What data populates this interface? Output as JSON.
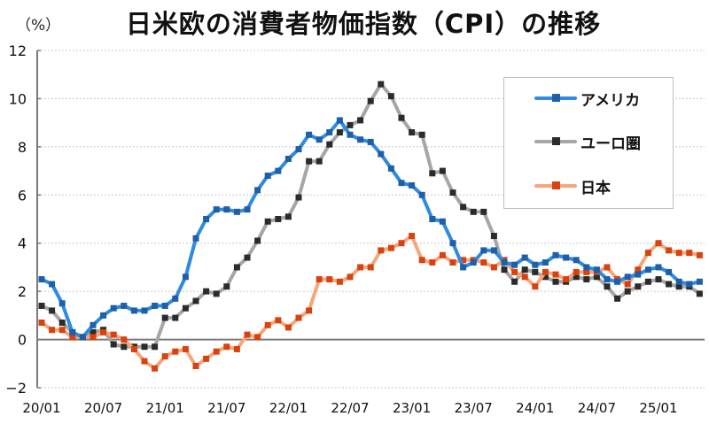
{
  "header": {
    "title": "日米欧の消費者物価指数（CPI）の推移",
    "unit_label": "（%）"
  },
  "legend": [
    {
      "name": "アメリカ",
      "line_color": "#2e8be0",
      "marker_color": "#1f5fa8"
    },
    {
      "name": "ユーロ圏",
      "line_color": "#a6a6a6",
      "marker_color": "#2b2b2b"
    },
    {
      "name": "日本",
      "line_color": "#f4a77a",
      "marker_color": "#d9420f"
    }
  ],
  "chart_data": {
    "type": "line",
    "title": "日米欧の消費者物価指数（CPI）の推移",
    "xlabel": "",
    "ylabel": "（%）",
    "ylim": [
      -2,
      12
    ],
    "yticks": [
      -2,
      0,
      2,
      4,
      6,
      8,
      10,
      12
    ],
    "grid": true,
    "legend_position": "upper right",
    "x_tick_labels": [
      "20/01",
      "20/07",
      "21/01",
      "21/07",
      "22/01",
      "22/07",
      "23/01",
      "23/07",
      "24/01",
      "24/07",
      "25/01"
    ],
    "x": [
      "20/01",
      "20/02",
      "20/03",
      "20/04",
      "20/05",
      "20/06",
      "20/07",
      "20/08",
      "20/09",
      "20/10",
      "20/11",
      "20/12",
      "21/01",
      "21/02",
      "21/03",
      "21/04",
      "21/05",
      "21/06",
      "21/07",
      "21/08",
      "21/09",
      "21/10",
      "21/11",
      "21/12",
      "22/01",
      "22/02",
      "22/03",
      "22/04",
      "22/05",
      "22/06",
      "22/07",
      "22/08",
      "22/09",
      "22/10",
      "22/11",
      "22/12",
      "23/01",
      "23/02",
      "23/03",
      "23/04",
      "23/05",
      "23/06",
      "23/07",
      "23/08",
      "23/09",
      "23/10",
      "23/11",
      "23/12",
      "24/01",
      "24/02",
      "24/03",
      "24/04",
      "24/05",
      "24/06",
      "24/07",
      "24/08",
      "24/09",
      "24/10",
      "24/11",
      "24/12",
      "25/01",
      "25/02",
      "25/03",
      "25/04",
      "25/05"
    ],
    "series": [
      {
        "name": "アメリカ",
        "color": "#2e8be0",
        "values": [
          2.5,
          2.3,
          1.5,
          0.3,
          0.1,
          0.6,
          1.0,
          1.3,
          1.4,
          1.2,
          1.2,
          1.4,
          1.4,
          1.7,
          2.6,
          4.2,
          5.0,
          5.4,
          5.4,
          5.3,
          5.4,
          6.2,
          6.8,
          7.0,
          7.5,
          7.9,
          8.5,
          8.3,
          8.6,
          9.1,
          8.5,
          8.3,
          8.2,
          7.7,
          7.1,
          6.5,
          6.4,
          6.0,
          5.0,
          4.9,
          4.0,
          3.0,
          3.2,
          3.7,
          3.7,
          3.2,
          3.1,
          3.4,
          3.1,
          3.2,
          3.5,
          3.4,
          3.3,
          3.0,
          2.9,
          2.5,
          2.4,
          2.6,
          2.7,
          2.9,
          3.0,
          2.8,
          2.4,
          2.3,
          2.4
        ]
      },
      {
        "name": "ユーロ圏",
        "color": "#a6a6a6",
        "values": [
          1.4,
          1.2,
          0.7,
          0.3,
          0.1,
          0.3,
          0.4,
          -0.2,
          -0.3,
          -0.3,
          -0.3,
          -0.3,
          0.9,
          0.9,
          1.3,
          1.6,
          2.0,
          1.9,
          2.2,
          3.0,
          3.4,
          4.1,
          4.9,
          5.0,
          5.1,
          5.9,
          7.4,
          7.4,
          8.1,
          8.6,
          8.9,
          9.1,
          9.9,
          10.6,
          10.1,
          9.2,
          8.6,
          8.5,
          6.9,
          7.0,
          6.1,
          5.5,
          5.3,
          5.3,
          4.3,
          2.9,
          2.4,
          2.9,
          2.8,
          2.6,
          2.4,
          2.4,
          2.6,
          2.5,
          2.6,
          2.2,
          1.7,
          2.0,
          2.2,
          2.4,
          2.5,
          2.3,
          2.2,
          2.2,
          1.9
        ]
      },
      {
        "name": "日本",
        "color": "#f4a77a",
        "values": [
          0.7,
          0.4,
          0.4,
          0.1,
          0.1,
          0.1,
          0.3,
          0.2,
          0.0,
          -0.4,
          -0.9,
          -1.2,
          -0.7,
          -0.5,
          -0.4,
          -1.1,
          -0.8,
          -0.5,
          -0.3,
          -0.4,
          0.2,
          0.1,
          0.6,
          0.8,
          0.5,
          0.9,
          1.2,
          2.5,
          2.5,
          2.4,
          2.6,
          3.0,
          3.0,
          3.7,
          3.8,
          4.0,
          4.3,
          3.3,
          3.2,
          3.5,
          3.2,
          3.3,
          3.3,
          3.2,
          3.0,
          3.3,
          2.8,
          2.6,
          2.2,
          2.8,
          2.7,
          2.5,
          2.8,
          2.8,
          2.8,
          3.0,
          2.5,
          2.3,
          2.9,
          3.6,
          4.0,
          3.7,
          3.6,
          3.6,
          3.5
        ]
      }
    ]
  }
}
